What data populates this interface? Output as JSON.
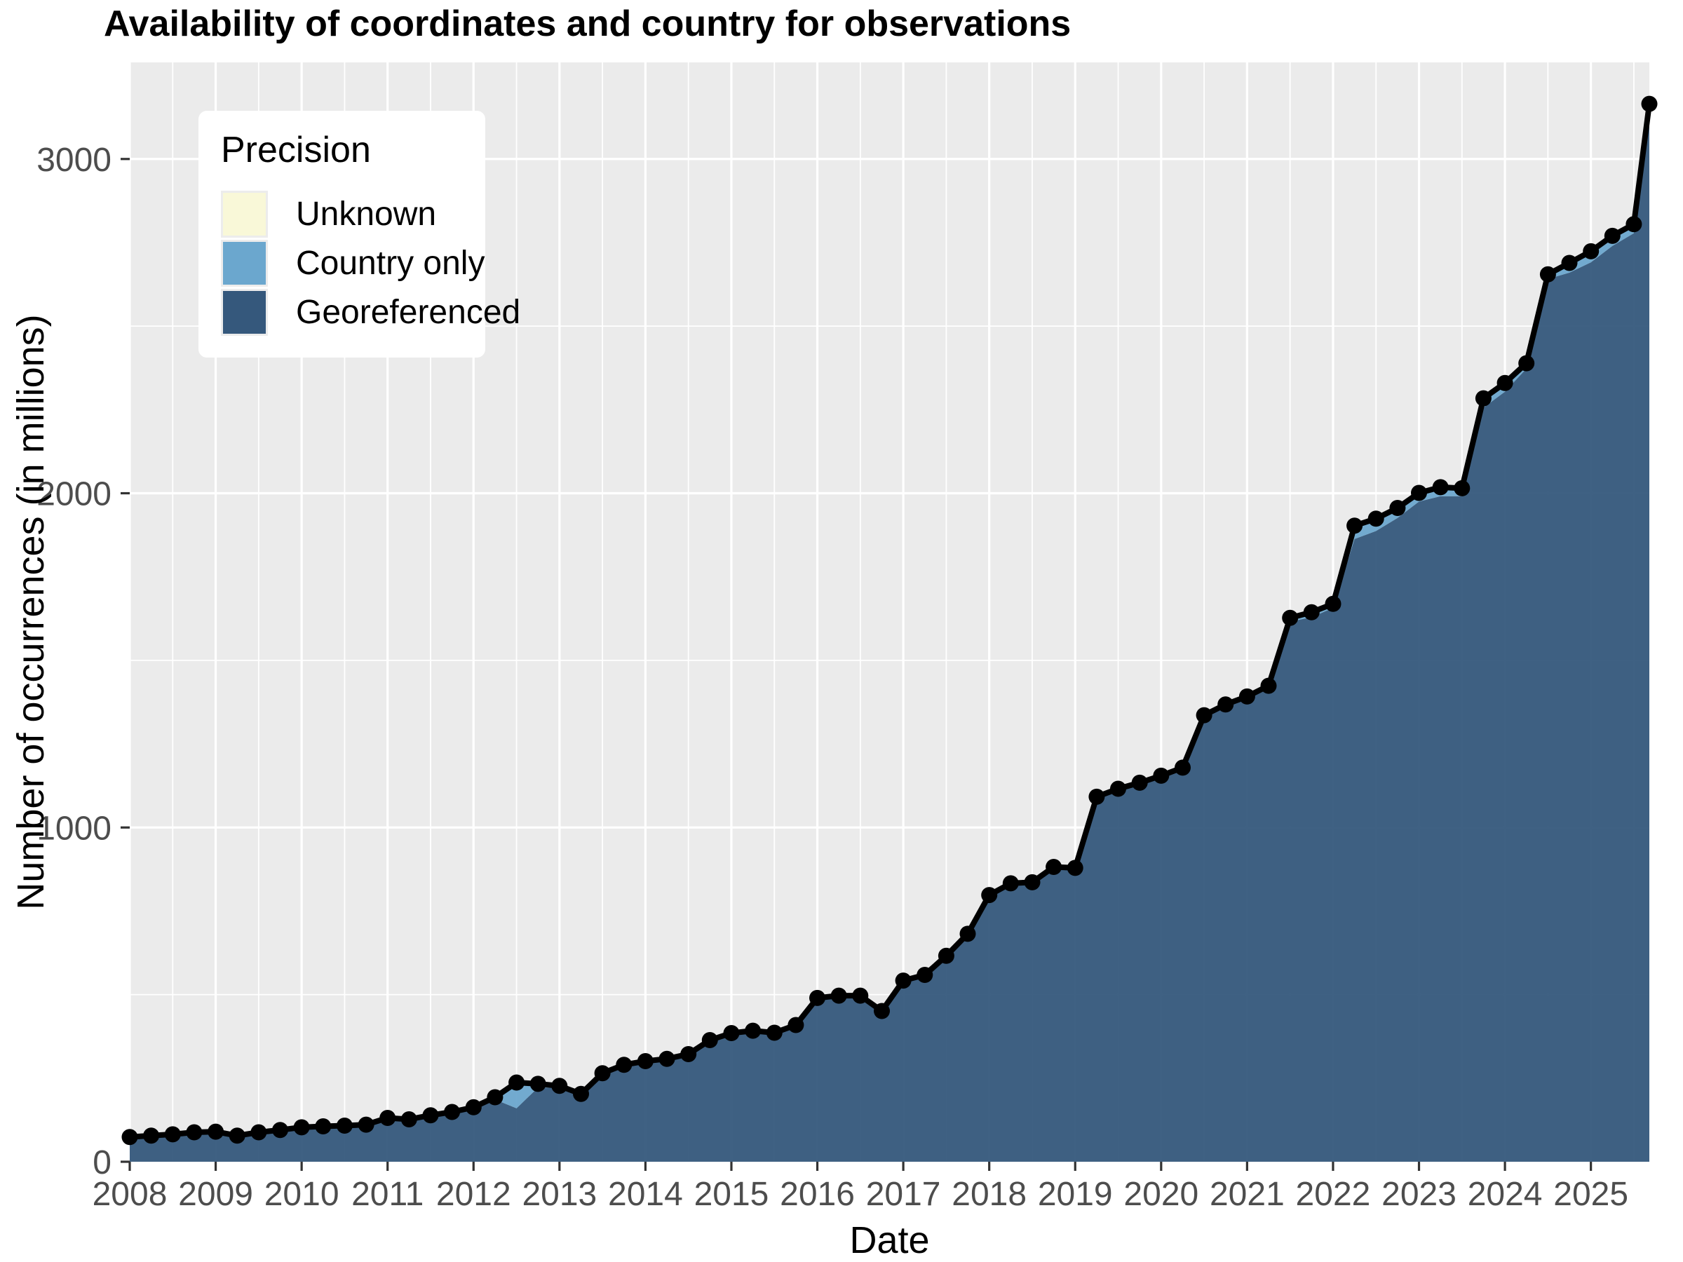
{
  "title": "Availability of coordinates and country for observations",
  "chart_data": {
    "type": "area",
    "title": "Availability of coordinates and country for observations",
    "xlabel": "Date",
    "ylabel": "Number of occurrences (in millions)",
    "stacked": true,
    "grid": "on",
    "panel_bg": "#ebebeb",
    "grid_color": "#ffffff",
    "tick_text_color": "#4d4d4d",
    "tick_mark_color": "#333333",
    "line_color": "#000000",
    "xlim": [
      2008,
      2025.68
    ],
    "ylim": [
      0,
      3289
    ],
    "x_ticks": [
      2008,
      2009,
      2010,
      2011,
      2012,
      2013,
      2014,
      2015,
      2016,
      2017,
      2018,
      2019,
      2020,
      2021,
      2022,
      2023,
      2024,
      2025
    ],
    "y_ticks": [
      0,
      1000,
      2000,
      3000
    ],
    "y_minor_ticks": [
      500,
      1500,
      2500
    ],
    "legend": {
      "title": "Precision",
      "position": "top-left-inside",
      "entries": [
        {
          "label": "Unknown",
          "color": "#f9f8d8"
        },
        {
          "label": "Country only",
          "color": "#6ba7ce"
        },
        {
          "label": "Georeferenced",
          "color": "#35587c"
        }
      ]
    },
    "x": [
      2008.0,
      2008.25,
      2008.5,
      2008.75,
      2009.0,
      2009.25,
      2009.5,
      2009.75,
      2010.0,
      2010.25,
      2010.5,
      2010.75,
      2011.0,
      2011.25,
      2011.5,
      2011.75,
      2012.0,
      2012.25,
      2012.5,
      2012.75,
      2013.0,
      2013.25,
      2013.5,
      2013.75,
      2014.0,
      2014.25,
      2014.5,
      2014.75,
      2015.0,
      2015.25,
      2015.5,
      2015.75,
      2016.0,
      2016.25,
      2016.5,
      2016.75,
      2017.0,
      2017.25,
      2017.5,
      2017.75,
      2018.0,
      2018.25,
      2018.5,
      2018.75,
      2019.0,
      2019.25,
      2019.5,
      2019.75,
      2020.0,
      2020.25,
      2020.5,
      2020.75,
      2021.0,
      2021.25,
      2021.5,
      2021.75,
      2022.0,
      2022.25,
      2022.5,
      2022.75,
      2023.0,
      2023.25,
      2023.5,
      2023.75,
      2024.0,
      2024.25,
      2024.5,
      2024.75,
      2025.0,
      2025.25,
      2025.5,
      2025.68
    ],
    "series": [
      {
        "name": "Georeferenced",
        "color": "#35587c",
        "values": [
          71,
          75,
          79,
          85,
          87,
          75,
          85,
          92,
          100,
          102,
          104,
          107,
          124,
          119,
          131,
          142,
          157,
          186,
          160,
          222,
          222,
          199,
          261,
          286,
          297,
          304,
          318,
          359,
          380,
          387,
          381,
          404,
          485,
          492,
          492,
          446,
          537,
          554,
          611,
          676,
          792,
          827,
          830,
          876,
          873,
          1085,
          1109,
          1127,
          1148,
          1172,
          1328,
          1360,
          1384,
          1415,
          1616,
          1629,
          1657,
          1863,
          1887,
          1926,
          1975,
          1991,
          1991,
          2256,
          2304,
          2373,
          2641,
          2660,
          2691,
          2740,
          2778,
          3149
        ]
      },
      {
        "name": "Country only",
        "color": "#6ba7ce",
        "values": [
          2,
          2,
          2,
          2,
          2,
          2,
          2,
          2,
          2,
          3,
          3,
          3,
          6,
          7,
          7,
          6,
          5,
          6,
          76,
          10,
          4,
          3,
          3,
          3,
          3,
          3,
          3,
          4,
          4,
          4,
          4,
          4,
          4,
          4,
          4,
          4,
          4,
          4,
          4,
          5,
          5,
          5,
          5,
          5,
          5,
          6,
          6,
          6,
          6,
          6,
          7,
          7,
          7,
          8,
          10,
          14,
          10,
          36,
          34,
          28,
          24,
          25,
          22,
          26,
          24,
          14,
          12,
          26,
          30,
          27,
          24,
          14
        ]
      },
      {
        "name": "Unknown",
        "color": "#f9f8d8",
        "values": [
          1,
          1,
          1,
          1,
          1,
          1,
          1,
          1,
          1,
          1,
          1,
          1,
          1,
          1,
          1,
          1,
          1,
          1,
          1,
          1,
          1,
          1,
          1,
          1,
          1,
          1,
          1,
          1,
          1,
          1,
          1,
          1,
          1,
          1,
          1,
          1,
          1,
          1,
          1,
          1,
          1,
          1,
          1,
          1,
          1,
          1,
          1,
          1,
          1,
          1,
          1,
          1,
          1,
          1,
          1,
          1,
          2,
          4,
          3,
          2,
          2,
          2,
          2,
          2,
          2,
          2,
          2,
          3,
          3,
          3,
          3,
          2
        ]
      }
    ]
  }
}
